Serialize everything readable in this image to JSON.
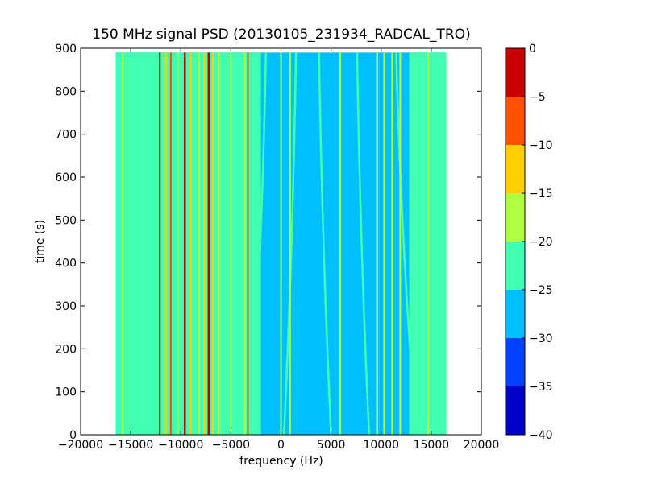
{
  "chart_data": {
    "type": "heatmap",
    "title": "150 MHz signal PSD (20130105_231934_RADCAL_TRO)",
    "xlabel": "frequency (Hz)",
    "ylabel": "time (s)",
    "xlim": [
      -20000,
      20000
    ],
    "ylim": [
      0,
      900
    ],
    "xticks": [
      -20000,
      -15000,
      -10000,
      -5000,
      0,
      5000,
      10000,
      15000,
      20000
    ],
    "xtick_labels": [
      "−20000",
      "−15000",
      "−10000",
      "−5000",
      "0",
      "5000",
      "10000",
      "15000",
      "20000"
    ],
    "yticks": [
      0,
      100,
      200,
      300,
      400,
      500,
      600,
      700,
      800,
      900
    ],
    "ytick_labels": [
      "0",
      "100",
      "200",
      "300",
      "400",
      "500",
      "600",
      "700",
      "800",
      "900"
    ],
    "data_extent": {
      "freq_min": -16500,
      "freq_max": 16500,
      "time_min": 0,
      "time_max": 890
    },
    "background_level": -27.5,
    "colorbar": {
      "levels": [
        -40,
        -35,
        -30,
        -25,
        -20,
        -15,
        -10,
        -5,
        0
      ],
      "tick_labels": [
        "−40",
        "−35",
        "−30",
        "−25",
        "−20",
        "−15",
        "−10",
        "−5",
        "0"
      ],
      "colors": [
        "#0000c8",
        "#0040ff",
        "#00bfff",
        "#40ffb0",
        "#b0ff40",
        "#ffd000",
        "#ff5000",
        "#c80000"
      ]
    },
    "bands": [
      {
        "f0": -16500,
        "f1": -12000,
        "level": -22.5
      },
      {
        "f0": -12000,
        "f1": -3000,
        "level": -22.5
      },
      {
        "f0": -3000,
        "f1": -2000,
        "level": -22.5
      },
      {
        "f0": 12800,
        "f1": 16500,
        "level": -22.5
      }
    ],
    "lines": [
      {
        "f": -15800,
        "level": -17.5,
        "width": 180
      },
      {
        "f": -12100,
        "level": -2.5,
        "width": 170
      },
      {
        "f": -11500,
        "level": -12.5,
        "width": 150
      },
      {
        "f": -11000,
        "level": -7.5,
        "width": 140
      },
      {
        "f": -10300,
        "level": -17.5,
        "width": 150
      },
      {
        "f": -9600,
        "level": -2.5,
        "width": 200
      },
      {
        "f": -9000,
        "level": -12.5,
        "width": 150
      },
      {
        "f": -8200,
        "level": -17.5,
        "width": 150
      },
      {
        "f": -7600,
        "level": -12.5,
        "width": 220
      },
      {
        "f": -7200,
        "level": -2.5,
        "width": 240
      },
      {
        "f": -6800,
        "level": -12.5,
        "width": 160
      },
      {
        "f": -6200,
        "level": -17.5,
        "width": 160
      },
      {
        "f": -5000,
        "level": -17.5,
        "width": 140
      },
      {
        "f": -3600,
        "level": -17.5,
        "width": 150
      },
      {
        "f": -3300,
        "level": -7.5,
        "width": 150
      },
      {
        "f": -2300,
        "level": -22.5,
        "width": 150
      },
      {
        "f": 0,
        "level": -17.5,
        "width": 160
      },
      {
        "f": 900,
        "level": -17.5,
        "width": 180
      },
      {
        "f": 5900,
        "level": -17.5,
        "width": 200
      },
      {
        "f": 9600,
        "level": -17.5,
        "width": 200
      },
      {
        "f": 10300,
        "level": -17.5,
        "width": 160
      },
      {
        "f": 11100,
        "level": -17.5,
        "width": 160
      },
      {
        "f": 11900,
        "level": -17.5,
        "width": 160
      },
      {
        "f": 14700,
        "level": -17.5,
        "width": 160
      }
    ],
    "curves": [
      {
        "f_bottom": -3000,
        "f_top": -1500,
        "level": -22.5
      },
      {
        "f_bottom": 300,
        "f_top": 1500,
        "level": -22.5
      },
      {
        "f_bottom": 5000,
        "f_top": 3800,
        "level": -22.5
      },
      {
        "f_bottom": 8800,
        "f_top": 7600,
        "level": -22.5
      },
      {
        "f_bottom": 13500,
        "f_top": 11500,
        "level": -22.5
      }
    ]
  }
}
